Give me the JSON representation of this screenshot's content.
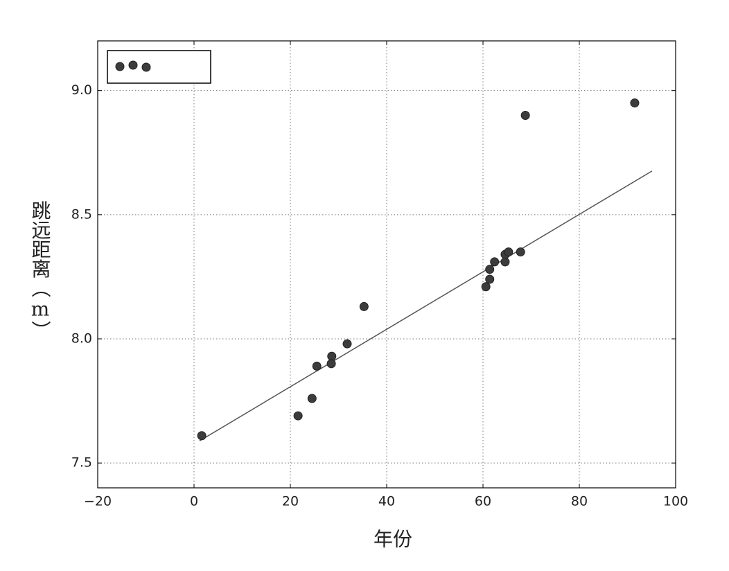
{
  "chart_data": {
    "type": "scatter",
    "x_label": "年份",
    "y_label": "跳远距离（m）",
    "xlim": [
      -20,
      100
    ],
    "ylim": [
      7.4,
      9.2
    ],
    "xticks": [
      {
        "value": -20,
        "label": "−20"
      },
      0,
      20,
      40,
      60,
      80,
      100
    ],
    "yticks": [
      7.5,
      {
        "value": 8.0,
        "label": "8.0"
      },
      8.5,
      {
        "value": 9.0,
        "label": "9.0"
      }
    ],
    "grid": true,
    "legend": "upper left",
    "series": [
      {
        "color": "#3c3c3c",
        "x": [
          1.6,
          21.6,
          24.5,
          25.5,
          28.6,
          28.5,
          31.8,
          35.3,
          60.6,
          61.4,
          61.4,
          62.4,
          64.6,
          64.6,
          65.3,
          67.8,
          68.8,
          91.5
        ],
        "values": [
          7.61,
          7.69,
          7.76,
          7.89,
          7.93,
          7.9,
          7.98,
          8.13,
          8.21,
          8.24,
          8.28,
          8.31,
          8.31,
          8.34,
          8.35,
          8.35,
          8.9,
          8.95
        ]
      }
    ],
    "fit_line": {
      "color": "#555555",
      "x": [
        1.15,
        95.1
      ],
      "values": [
        7.589,
        8.676
      ]
    }
  }
}
